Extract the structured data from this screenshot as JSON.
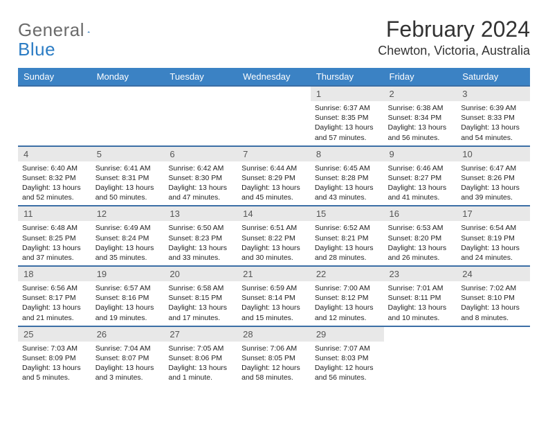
{
  "brand": {
    "part1": "General",
    "part2": "Blue"
  },
  "title": "February 2024",
  "location": "Chewton, Victoria, Australia",
  "colors": {
    "header_bg": "#3b82c4",
    "header_text": "#ffffff",
    "row_border": "#3b6ea5",
    "daynum_bg": "#e8e8e8",
    "logo_gray": "#6b6b6b",
    "logo_blue": "#2b7cc4"
  },
  "day_headers": [
    "Sunday",
    "Monday",
    "Tuesday",
    "Wednesday",
    "Thursday",
    "Friday",
    "Saturday"
  ],
  "weeks": [
    [
      null,
      null,
      null,
      null,
      {
        "n": "1",
        "sr": "6:37 AM",
        "ss": "8:35 PM",
        "dl": "13 hours and 57 minutes."
      },
      {
        "n": "2",
        "sr": "6:38 AM",
        "ss": "8:34 PM",
        "dl": "13 hours and 56 minutes."
      },
      {
        "n": "3",
        "sr": "6:39 AM",
        "ss": "8:33 PM",
        "dl": "13 hours and 54 minutes."
      }
    ],
    [
      {
        "n": "4",
        "sr": "6:40 AM",
        "ss": "8:32 PM",
        "dl": "13 hours and 52 minutes."
      },
      {
        "n": "5",
        "sr": "6:41 AM",
        "ss": "8:31 PM",
        "dl": "13 hours and 50 minutes."
      },
      {
        "n": "6",
        "sr": "6:42 AM",
        "ss": "8:30 PM",
        "dl": "13 hours and 47 minutes."
      },
      {
        "n": "7",
        "sr": "6:44 AM",
        "ss": "8:29 PM",
        "dl": "13 hours and 45 minutes."
      },
      {
        "n": "8",
        "sr": "6:45 AM",
        "ss": "8:28 PM",
        "dl": "13 hours and 43 minutes."
      },
      {
        "n": "9",
        "sr": "6:46 AM",
        "ss": "8:27 PM",
        "dl": "13 hours and 41 minutes."
      },
      {
        "n": "10",
        "sr": "6:47 AM",
        "ss": "8:26 PM",
        "dl": "13 hours and 39 minutes."
      }
    ],
    [
      {
        "n": "11",
        "sr": "6:48 AM",
        "ss": "8:25 PM",
        "dl": "13 hours and 37 minutes."
      },
      {
        "n": "12",
        "sr": "6:49 AM",
        "ss": "8:24 PM",
        "dl": "13 hours and 35 minutes."
      },
      {
        "n": "13",
        "sr": "6:50 AM",
        "ss": "8:23 PM",
        "dl": "13 hours and 33 minutes."
      },
      {
        "n": "14",
        "sr": "6:51 AM",
        "ss": "8:22 PM",
        "dl": "13 hours and 30 minutes."
      },
      {
        "n": "15",
        "sr": "6:52 AM",
        "ss": "8:21 PM",
        "dl": "13 hours and 28 minutes."
      },
      {
        "n": "16",
        "sr": "6:53 AM",
        "ss": "8:20 PM",
        "dl": "13 hours and 26 minutes."
      },
      {
        "n": "17",
        "sr": "6:54 AM",
        "ss": "8:19 PM",
        "dl": "13 hours and 24 minutes."
      }
    ],
    [
      {
        "n": "18",
        "sr": "6:56 AM",
        "ss": "8:17 PM",
        "dl": "13 hours and 21 minutes."
      },
      {
        "n": "19",
        "sr": "6:57 AM",
        "ss": "8:16 PM",
        "dl": "13 hours and 19 minutes."
      },
      {
        "n": "20",
        "sr": "6:58 AM",
        "ss": "8:15 PM",
        "dl": "13 hours and 17 minutes."
      },
      {
        "n": "21",
        "sr": "6:59 AM",
        "ss": "8:14 PM",
        "dl": "13 hours and 15 minutes."
      },
      {
        "n": "22",
        "sr": "7:00 AM",
        "ss": "8:12 PM",
        "dl": "13 hours and 12 minutes."
      },
      {
        "n": "23",
        "sr": "7:01 AM",
        "ss": "8:11 PM",
        "dl": "13 hours and 10 minutes."
      },
      {
        "n": "24",
        "sr": "7:02 AM",
        "ss": "8:10 PM",
        "dl": "13 hours and 8 minutes."
      }
    ],
    [
      {
        "n": "25",
        "sr": "7:03 AM",
        "ss": "8:09 PM",
        "dl": "13 hours and 5 minutes."
      },
      {
        "n": "26",
        "sr": "7:04 AM",
        "ss": "8:07 PM",
        "dl": "13 hours and 3 minutes."
      },
      {
        "n": "27",
        "sr": "7:05 AM",
        "ss": "8:06 PM",
        "dl": "13 hours and 1 minute."
      },
      {
        "n": "28",
        "sr": "7:06 AM",
        "ss": "8:05 PM",
        "dl": "12 hours and 58 minutes."
      },
      {
        "n": "29",
        "sr": "7:07 AM",
        "ss": "8:03 PM",
        "dl": "12 hours and 56 minutes."
      },
      null,
      null
    ]
  ],
  "labels": {
    "sunrise": "Sunrise: ",
    "sunset": "Sunset: ",
    "daylight": "Daylight: "
  }
}
